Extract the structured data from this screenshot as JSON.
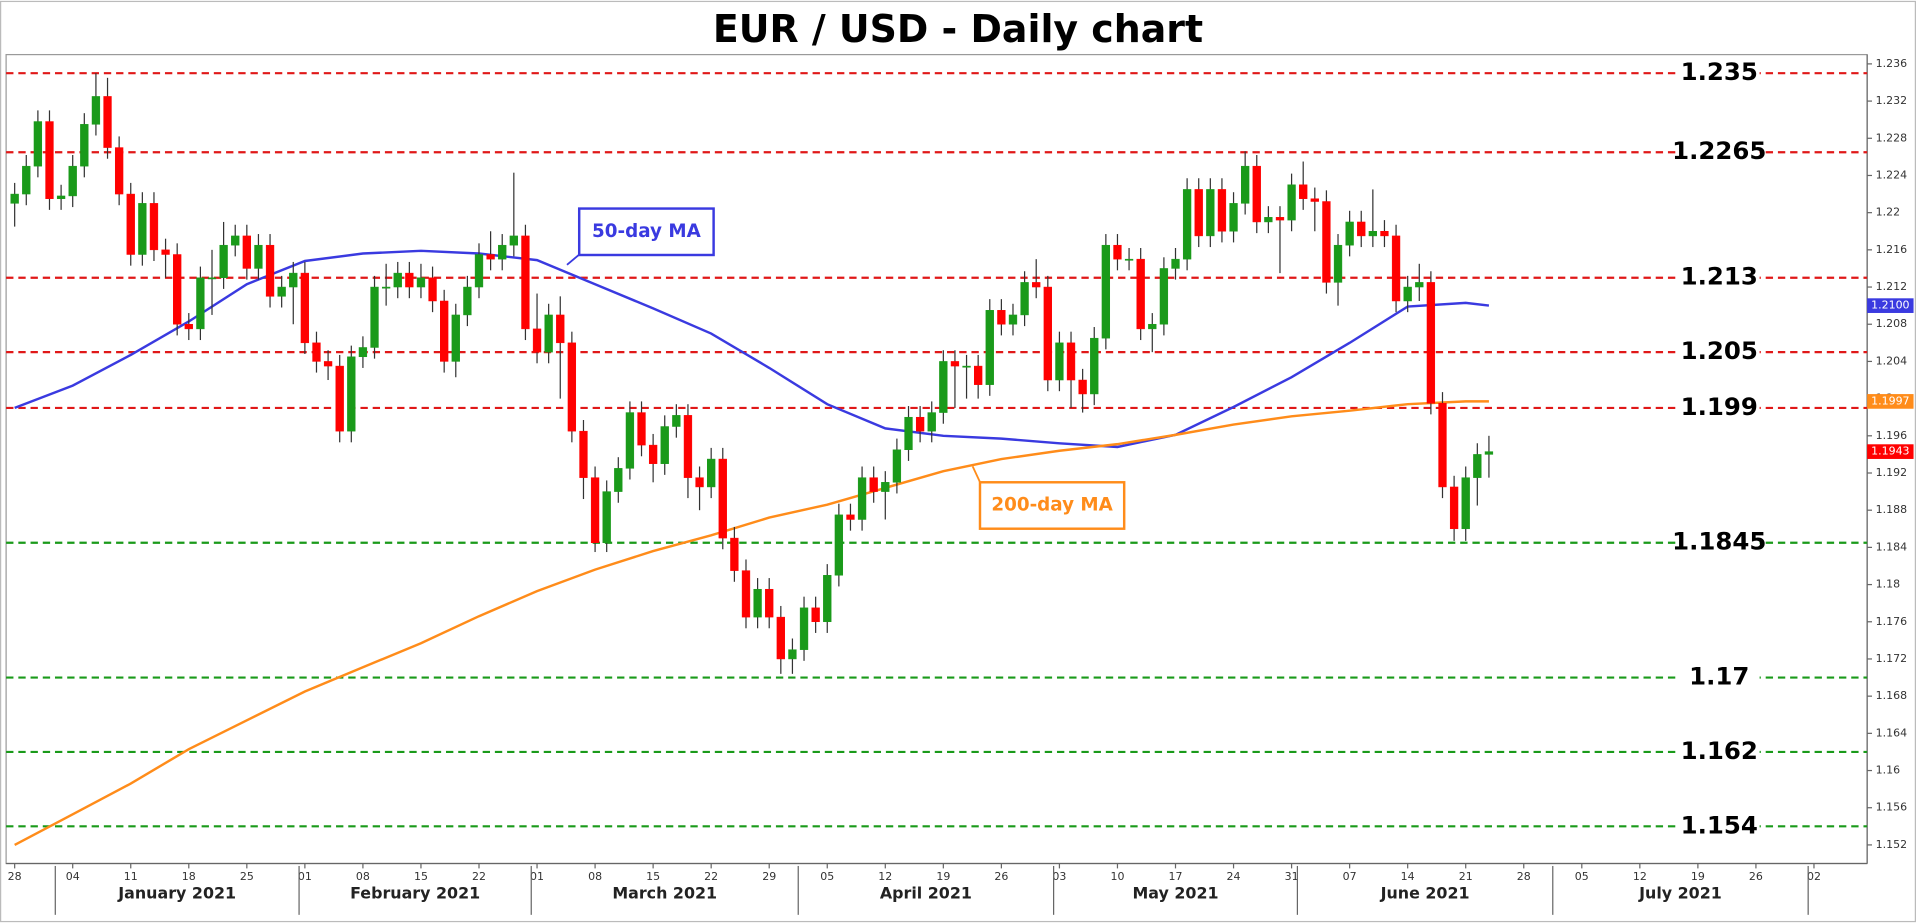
{
  "chart_data": {
    "type": "candlestick",
    "title": "EUR / USD - Daily chart",
    "x": [
      "2020-12-28",
      "2020-12-29",
      "2020-12-30",
      "2020-12-31",
      "2021-01-01",
      "2021-01-04",
      "2021-01-05",
      "2021-01-06",
      "2021-01-07",
      "2021-01-08",
      "2021-01-11",
      "2021-01-12",
      "2021-01-13",
      "2021-01-14",
      "2021-01-15",
      "2021-01-18",
      "2021-01-19",
      "2021-01-20",
      "2021-01-21",
      "2021-01-22",
      "2021-01-25",
      "2021-01-26",
      "2021-01-27",
      "2021-01-28",
      "2021-01-29",
      "2021-02-01",
      "2021-02-02",
      "2021-02-03",
      "2021-02-04",
      "2021-02-05",
      "2021-02-08",
      "2021-02-09",
      "2021-02-10",
      "2021-02-11",
      "2021-02-12",
      "2021-02-15",
      "2021-02-16",
      "2021-02-17",
      "2021-02-18",
      "2021-02-19",
      "2021-02-22",
      "2021-02-23",
      "2021-02-24",
      "2021-02-25",
      "2021-02-26",
      "2021-03-01",
      "2021-03-02",
      "2021-03-03",
      "2021-03-04",
      "2021-03-05",
      "2021-03-08",
      "2021-03-09",
      "2021-03-10",
      "2021-03-11",
      "2021-03-12",
      "2021-03-15",
      "2021-03-16",
      "2021-03-17",
      "2021-03-18",
      "2021-03-19",
      "2021-03-22",
      "2021-03-23",
      "2021-03-24",
      "2021-03-25",
      "2021-03-26",
      "2021-03-29",
      "2021-03-30",
      "2021-03-31",
      "2021-04-01",
      "2021-04-02",
      "2021-04-05",
      "2021-04-06",
      "2021-04-07",
      "2021-04-08",
      "2021-04-09",
      "2021-04-12",
      "2021-04-13",
      "2021-04-14",
      "2021-04-15",
      "2021-04-16",
      "2021-04-19",
      "2021-04-20",
      "2021-04-21",
      "2021-04-22",
      "2021-04-23",
      "2021-04-26",
      "2021-04-27",
      "2021-04-28",
      "2021-04-29",
      "2021-04-30",
      "2021-05-03",
      "2021-05-04",
      "2021-05-05",
      "2021-05-06",
      "2021-05-07",
      "2021-05-10",
      "2021-05-11",
      "2021-05-12",
      "2021-05-13",
      "2021-05-14",
      "2021-05-17",
      "2021-05-18",
      "2021-05-19",
      "2021-05-20",
      "2021-05-21",
      "2021-05-24",
      "2021-05-25",
      "2021-05-26",
      "2021-05-27",
      "2021-05-28",
      "2021-05-31",
      "2021-06-01",
      "2021-06-02",
      "2021-06-03",
      "2021-06-04",
      "2021-06-07",
      "2021-06-08",
      "2021-06-09",
      "2021-06-10",
      "2021-06-11",
      "2021-06-14",
      "2021-06-15",
      "2021-06-16",
      "2021-06-17",
      "2021-06-18",
      "2021-06-21",
      "2021-06-22",
      "2021-06-23"
    ],
    "open": [
      1.221,
      1.222,
      1.225,
      1.2298,
      1.2215,
      1.2218,
      1.225,
      1.2295,
      1.2325,
      1.227,
      1.222,
      1.2155,
      1.221,
      1.216,
      1.2155,
      1.208,
      1.2075,
      1.213,
      1.213,
      1.2165,
      1.2175,
      1.214,
      1.2165,
      1.211,
      1.212,
      1.2135,
      1.206,
      1.204,
      1.2035,
      1.1965,
      1.2045,
      1.2055,
      1.212,
      1.212,
      1.2135,
      1.212,
      1.213,
      1.2105,
      1.204,
      1.209,
      1.212,
      1.2155,
      1.215,
      1.2165,
      1.2175,
      1.2075,
      1.205,
      1.209,
      1.206,
      1.1965,
      1.1915,
      1.1845,
      1.19,
      1.1925,
      1.1985,
      1.195,
      1.193,
      1.197,
      1.1982,
      1.1915,
      1.1905,
      1.1935,
      1.185,
      1.1815,
      1.1765,
      1.1795,
      1.1765,
      1.172,
      1.173,
      1.1775,
      1.176,
      1.181,
      1.1875,
      1.187,
      1.1915,
      1.19,
      1.191,
      1.1945,
      1.198,
      1.1965,
      1.1985,
      1.204,
      1.2035,
      1.2035,
      1.2015,
      1.2095,
      1.208,
      1.209,
      1.2125,
      1.212,
      1.202,
      1.206,
      1.202,
      1.2005,
      1.2065,
      1.2165,
      1.215,
      1.215,
      1.2075,
      1.208,
      1.214,
      1.215,
      1.2225,
      1.2175,
      1.2225,
      1.218,
      1.221,
      1.225,
      1.219,
      1.2195,
      1.2192,
      1.223,
      1.2215,
      1.2212,
      1.2125,
      1.2165,
      1.219,
      1.2175,
      1.218,
      1.2175,
      1.2105,
      1.212,
      1.2125,
      1.1995,
      1.1905,
      1.186,
      1.1915,
      1.194
    ],
    "high": [
      1.2232,
      1.2262,
      1.231,
      1.231,
      1.223,
      1.2262,
      1.2307,
      1.235,
      1.2345,
      1.2282,
      1.2232,
      1.2222,
      1.2222,
      1.2172,
      1.2167,
      1.2092,
      1.2142,
      1.216,
      1.219,
      1.2187,
      1.2187,
      1.2177,
      1.2177,
      1.2132,
      1.2147,
      1.2147,
      1.2072,
      1.2052,
      1.2047,
      1.2057,
      1.2067,
      1.2132,
      1.2145,
      1.2147,
      1.2147,
      1.2145,
      1.2142,
      1.2117,
      1.2102,
      1.2132,
      1.2167,
      1.218,
      1.2177,
      1.2243,
      1.2187,
      1.2113,
      1.2102,
      1.211,
      1.2072,
      1.1977,
      1.1927,
      1.1912,
      1.1937,
      1.1997,
      1.1997,
      1.1962,
      1.1982,
      1.1994,
      1.1994,
      1.1927,
      1.1947,
      1.1947,
      1.1862,
      1.1827,
      1.1807,
      1.1807,
      1.1777,
      1.1742,
      1.1787,
      1.1787,
      1.1822,
      1.1887,
      1.1887,
      1.1927,
      1.1927,
      1.1922,
      1.1957,
      1.1992,
      1.1992,
      1.1997,
      1.2052,
      1.2052,
      1.2047,
      1.2047,
      1.2107,
      1.2107,
      1.2102,
      1.2137,
      1.215,
      1.2132,
      1.2072,
      1.2072,
      1.2032,
      1.2077,
      1.2177,
      1.2177,
      1.2162,
      1.2162,
      1.2092,
      1.2152,
      1.2162,
      1.2237,
      1.2237,
      1.2237,
      1.2237,
      1.2222,
      1.2266,
      1.2262,
      1.2207,
      1.2207,
      1.2242,
      1.2255,
      1.2227,
      1.2224,
      1.2177,
      1.2202,
      1.2202,
      1.2225,
      1.2192,
      1.2187,
      1.2132,
      1.2145,
      1.2137,
      1.2007,
      1.1917,
      1.1927,
      1.1952,
      1.196
    ],
    "low": [
      1.2185,
      1.2208,
      1.2238,
      1.2203,
      1.2203,
      1.2206,
      1.2238,
      1.2283,
      1.2258,
      1.2208,
      1.2143,
      1.2143,
      1.2148,
      1.213,
      1.2068,
      1.2063,
      1.2063,
      1.209,
      1.2118,
      1.2153,
      1.2128,
      1.2128,
      1.2098,
      1.2098,
      1.208,
      1.2048,
      1.2028,
      1.202,
      1.1953,
      1.1953,
      1.2033,
      1.2043,
      1.21,
      1.2108,
      1.2108,
      1.2108,
      1.2093,
      1.2028,
      1.2023,
      1.2078,
      1.2108,
      1.2138,
      1.2138,
      1.2153,
      1.2063,
      1.2038,
      1.2038,
      1.2,
      1.1953,
      1.1892,
      1.1835,
      1.1835,
      1.1888,
      1.1913,
      1.1938,
      1.191,
      1.1918,
      1.1958,
      1.1893,
      1.188,
      1.1893,
      1.1838,
      1.1803,
      1.1753,
      1.1753,
      1.1753,
      1.1704,
      1.1704,
      1.1718,
      1.1748,
      1.1748,
      1.1798,
      1.1858,
      1.1858,
      1.1888,
      1.187,
      1.1898,
      1.1933,
      1.1953,
      1.1953,
      1.1973,
      1.199,
      1.2,
      1.2,
      1.2003,
      1.2068,
      1.2068,
      1.2078,
      1.2108,
      1.2008,
      1.2008,
      1.199,
      1.1985,
      1.1993,
      1.2053,
      1.2138,
      1.2138,
      1.2063,
      1.205,
      1.2068,
      1.2128,
      1.2138,
      1.2163,
      1.2163,
      1.2168,
      1.2168,
      1.2198,
      1.2178,
      1.2178,
      1.2135,
      1.218,
      1.2203,
      1.218,
      1.2113,
      1.21,
      1.2153,
      1.2163,
      1.2163,
      1.2163,
      1.2093,
      1.2093,
      1.2105,
      1.1983,
      1.1893,
      1.1847,
      1.1847,
      1.1885,
      1.1915
    ],
    "close": [
      1.222,
      1.225,
      1.2298,
      1.2215,
      1.2218,
      1.225,
      1.2295,
      1.2325,
      1.227,
      1.222,
      1.2155,
      1.221,
      1.216,
      1.2155,
      1.208,
      1.2075,
      1.213,
      1.213,
      1.2165,
      1.2175,
      1.214,
      1.2165,
      1.211,
      1.212,
      1.2135,
      1.206,
      1.204,
      1.2035,
      1.1965,
      1.2045,
      1.2055,
      1.212,
      1.212,
      1.2135,
      1.212,
      1.213,
      1.2105,
      1.204,
      1.209,
      1.212,
      1.2155,
      1.215,
      1.2165,
      1.2175,
      1.2075,
      1.205,
      1.209,
      1.206,
      1.1965,
      1.1915,
      1.1845,
      1.19,
      1.1925,
      1.1985,
      1.195,
      1.193,
      1.197,
      1.1982,
      1.1915,
      1.1905,
      1.1935,
      1.185,
      1.1815,
      1.1765,
      1.1795,
      1.1765,
      1.172,
      1.173,
      1.1775,
      1.176,
      1.181,
      1.1875,
      1.187,
      1.1915,
      1.19,
      1.191,
      1.1945,
      1.198,
      1.1965,
      1.1985,
      1.204,
      1.2035,
      1.2035,
      1.2015,
      1.2095,
      1.208,
      1.209,
      1.2125,
      1.212,
      1.202,
      1.206,
      1.202,
      1.2005,
      1.2065,
      1.2165,
      1.215,
      1.215,
      1.2075,
      1.208,
      1.214,
      1.215,
      1.2225,
      1.2175,
      1.2225,
      1.218,
      1.221,
      1.225,
      1.219,
      1.2195,
      1.2192,
      1.223,
      1.2215,
      1.2212,
      1.2125,
      1.2165,
      1.219,
      1.2175,
      1.218,
      1.2175,
      1.2105,
      1.212,
      1.2125,
      1.1995,
      1.1905,
      1.186,
      1.1915,
      1.194,
      1.1943
    ],
    "up_color": "#1a9a1a",
    "down_color": "#ff0000",
    "series": [
      {
        "name": "50-day MA",
        "color": "#3a3ae0",
        "x": [
          "2020-12-28",
          "2021-01-04",
          "2021-01-11",
          "2021-01-18",
          "2021-01-25",
          "2021-02-01",
          "2021-02-08",
          "2021-02-15",
          "2021-02-22",
          "2021-03-01",
          "2021-03-08",
          "2021-03-15",
          "2021-03-22",
          "2021-03-29",
          "2021-04-05",
          "2021-04-12",
          "2021-04-19",
          "2021-04-26",
          "2021-05-03",
          "2021-05-10",
          "2021-05-17",
          "2021-05-24",
          "2021-05-31",
          "2021-06-07",
          "2021-06-14",
          "2021-06-21",
          "2021-06-23"
        ],
        "values": [
          1.199,
          1.2014,
          1.2047,
          1.2083,
          1.2123,
          1.2148,
          1.2156,
          1.2159,
          1.2156,
          1.2149,
          1.2123,
          1.2097,
          1.207,
          1.2033,
          1.1994,
          1.1968,
          1.196,
          1.1957,
          1.1952,
          1.1948,
          1.1961,
          1.1991,
          1.2023,
          1.206,
          1.2099,
          1.2103,
          1.21
        ]
      },
      {
        "name": "200-day MA",
        "color": "#ff8c1a",
        "x": [
          "2020-12-28",
          "2021-01-04",
          "2021-01-11",
          "2021-01-18",
          "2021-01-25",
          "2021-02-01",
          "2021-02-08",
          "2021-02-15",
          "2021-02-22",
          "2021-03-01",
          "2021-03-08",
          "2021-03-15",
          "2021-03-22",
          "2021-03-29",
          "2021-04-05",
          "2021-04-12",
          "2021-04-19",
          "2021-04-26",
          "2021-05-03",
          "2021-05-10",
          "2021-05-17",
          "2021-05-24",
          "2021-05-31",
          "2021-06-07",
          "2021-06-14",
          "2021-06-21",
          "2021-06-23"
        ],
        "values": [
          1.152,
          1.1553,
          1.1586,
          1.1623,
          1.1654,
          1.1685,
          1.1711,
          1.1737,
          1.1766,
          1.1793,
          1.1816,
          1.1836,
          1.1853,
          1.1872,
          1.1886,
          1.1904,
          1.1922,
          1.1935,
          1.1944,
          1.1951,
          1.1961,
          1.1972,
          1.1981,
          1.1987,
          1.1994,
          1.1997,
          1.1997
        ]
      }
    ],
    "levels": [
      {
        "value": 1.235,
        "color": "#e01818"
      },
      {
        "value": 1.2265,
        "color": "#e01818"
      },
      {
        "value": 1.213,
        "color": "#e01818"
      },
      {
        "value": 1.205,
        "color": "#e01818"
      },
      {
        "value": 1.199,
        "color": "#e01818"
      },
      {
        "value": 1.1845,
        "color": "#1a9a1a"
      },
      {
        "value": 1.17,
        "color": "#1a9a1a"
      },
      {
        "value": 1.162,
        "color": "#1a9a1a"
      },
      {
        "value": 1.154,
        "color": "#1a9a1a"
      }
    ],
    "price_tags": [
      {
        "value": 1.21,
        "label": "1.2100",
        "color": "#3a3ae0"
      },
      {
        "value": 1.1997,
        "label": "1.1997",
        "color": "#ff8c1a"
      },
      {
        "value": 1.1943,
        "label": "1.1943",
        "color": "#ff0000"
      }
    ],
    "ylim": [
      1.15,
      1.237
    ],
    "yticks": [
      1.152,
      1.156,
      1.16,
      1.164,
      1.168,
      1.172,
      1.176,
      1.18,
      1.184,
      1.188,
      1.192,
      1.196,
      1.2,
      1.204,
      1.208,
      1.212,
      1.216,
      1.22,
      1.224,
      1.228,
      1.232,
      1.236
    ],
    "xticks": [
      {
        "value": "2020-12-28",
        "label": "28"
      },
      {
        "value": "2021-01-04",
        "label": "04"
      },
      {
        "value": "2021-01-11",
        "label": "11"
      },
      {
        "value": "2021-01-18",
        "label": "18"
      },
      {
        "value": "2021-01-25",
        "label": "25"
      },
      {
        "value": "2021-02-01",
        "label": "01"
      },
      {
        "value": "2021-02-08",
        "label": "08"
      },
      {
        "value": "2021-02-15",
        "label": "15"
      },
      {
        "value": "2021-02-22",
        "label": "22"
      },
      {
        "value": "2021-03-01",
        "label": "01"
      },
      {
        "value": "2021-03-08",
        "label": "08"
      },
      {
        "value": "2021-03-15",
        "label": "15"
      },
      {
        "value": "2021-03-22",
        "label": "22"
      },
      {
        "value": "2021-03-29",
        "label": "29"
      },
      {
        "value": "2021-04-05",
        "label": "05"
      },
      {
        "value": "2021-04-12",
        "label": "12"
      },
      {
        "value": "2021-04-19",
        "label": "19"
      },
      {
        "value": "2021-04-26",
        "label": "26"
      },
      {
        "value": "2021-05-03",
        "label": "03"
      },
      {
        "value": "2021-05-10",
        "label": "10"
      },
      {
        "value": "2021-05-17",
        "label": "17"
      },
      {
        "value": "2021-05-24",
        "label": "24"
      },
      {
        "value": "2021-05-31",
        "label": "31"
      },
      {
        "value": "2021-06-07",
        "label": "07"
      },
      {
        "value": "2021-06-14",
        "label": "14"
      },
      {
        "value": "2021-06-21",
        "label": "21"
      },
      {
        "value": "2021-06-28",
        "label": "28"
      },
      {
        "value": "2021-07-05",
        "label": "05"
      },
      {
        "value": "2021-07-12",
        "label": "12"
      },
      {
        "value": "2021-07-19",
        "label": "19"
      },
      {
        "value": "2021-07-26",
        "label": "26"
      },
      {
        "value": "2021-08-02",
        "label": "02"
      }
    ],
    "months": [
      {
        "value": "2021-01",
        "label": "January 2021"
      },
      {
        "value": "2021-02",
        "label": "February 2021"
      },
      {
        "value": "2021-03",
        "label": "March 2021"
      },
      {
        "value": "2021-04",
        "label": "April 2021"
      },
      {
        "value": "2021-05",
        "label": "May 2021"
      },
      {
        "value": "2021-06",
        "label": "June 2021"
      },
      {
        "value": "2021-07",
        "label": "July 2021"
      }
    ]
  }
}
